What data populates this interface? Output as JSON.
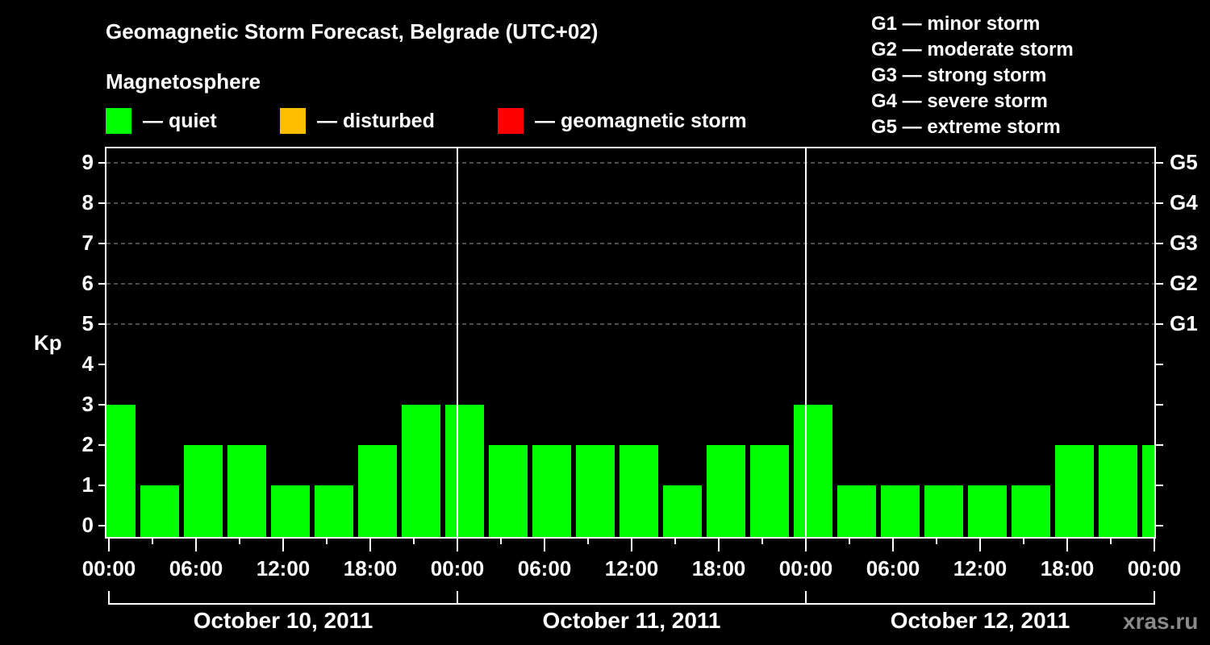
{
  "header": {
    "title": "Geomagnetic Storm Forecast, Belgrade (UTC+02)",
    "subtitle": "Magnetosphere",
    "legend": [
      {
        "label": "— quiet",
        "color": "#00ff00"
      },
      {
        "label": "— disturbed",
        "color": "#ffbf00"
      },
      {
        "label": "— geomagnetic storm",
        "color": "#ff0000"
      }
    ]
  },
  "storm_scale": [
    "G1 — minor storm",
    "G2 — moderate storm",
    "G3 — strong storm",
    "G4 — severe storm",
    "G5 — extreme storm"
  ],
  "watermark": "xras.ru",
  "chart_data": {
    "type": "bar",
    "title": "Geomagnetic Storm Forecast, Belgrade (UTC+02)",
    "ylabel": "Kp",
    "xlabel": "",
    "ylim": [
      0,
      9
    ],
    "yticks": [
      0,
      1,
      2,
      3,
      4,
      5,
      6,
      7,
      8,
      9
    ],
    "right_axis_labels": [
      {
        "value": 5,
        "label": "G1"
      },
      {
        "value": 6,
        "label": "G2"
      },
      {
        "value": 7,
        "label": "G3"
      },
      {
        "value": 8,
        "label": "G4"
      },
      {
        "value": 9,
        "label": "G5"
      }
    ],
    "grid": "dashed at Kp 5-9",
    "xtick_labels": [
      "00:00",
      "06:00",
      "12:00",
      "18:00",
      "00:00",
      "06:00",
      "12:00",
      "18:00",
      "00:00",
      "06:00",
      "12:00",
      "18:00",
      "00:00"
    ],
    "days": [
      "October 10, 2011",
      "October 11, 2011",
      "October 12, 2011"
    ],
    "series": [
      {
        "name": "Kp",
        "color": "#00ff00",
        "values": [
          3,
          1,
          2,
          2,
          1,
          1,
          2,
          3,
          3,
          2,
          2,
          2,
          2,
          1,
          2,
          2,
          3,
          1,
          1,
          1,
          1,
          1,
          2,
          2,
          2
        ]
      }
    ]
  }
}
